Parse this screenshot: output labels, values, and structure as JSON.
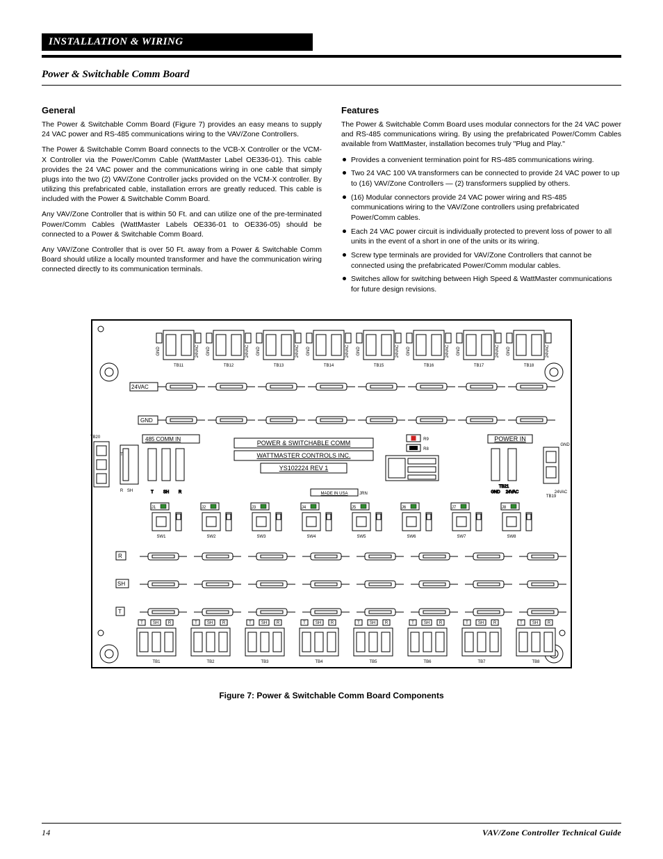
{
  "header": {
    "tab": "INSTALLATION & WIRING",
    "section": "Power & Switchable Comm Board"
  },
  "left": {
    "h": "General",
    "p1": "The Power & Switchable Comm Board (Figure 7) provides an easy means to supply 24 VAC power and RS-485 communications wiring to the VAV/Zone Controllers.",
    "p2": "The Power & Switchable Comm Board connects to the VCB-X Controller or the VCM-X Controller via the Power/Comm Cable (WattMaster Label OE336-01). This cable provides the 24 VAC power and the communications wiring in one cable that simply plugs into the two (2) VAV/Zone Controller jacks provided on the VCM-X controller. By utilizing this prefabricated cable, installation errors are greatly reduced. This cable is included with the Power & Switchable Comm Board.",
    "p3": "Any VAV/Zone Controller that is within 50 Ft. and can utilize one of the pre-terminated Power/Comm Cables (WattMaster Labels OE336-01 to OE336-05) should be connected to a Power & Switchable Comm Board.",
    "p4": "Any VAV/Zone Controller that is over 50 Ft. away from a Power & Switchable Comm Board should utilize a locally mounted transformer and have the communication wiring connected directly to its communication terminals."
  },
  "right": {
    "h": "Features",
    "p1": "The Power & Switchable Comm Board uses modular connectors for the 24 VAC power and RS-485 communications wiring. By using the prefabricated Power/Comm Cables available from WattMaster, installation becomes truly \"Plug and Play.\"",
    "items": [
      "Provides a convenient termination point for RS-485 communications wiring.",
      "Two 24 VAC 100 VA transformers can be connected to provide 24 VAC power to up to (16) VAV/Zone Controllers — (2) transformers supplied by others.",
      "(16) Modular connectors provide 24 VAC power wiring and RS-485 communications wiring to the VAV/Zone controllers using prefabricated Power/Comm cables.",
      "Each 24 VAC power circuit is individually protected to prevent loss of power to all units in the event of a short in one of the units or its wiring.",
      "Screw type terminals are provided for VAV/Zone Controllers that cannot be connected using the prefabricated Power/Comm modular cables.",
      "Switches allow for switching between High Speed & WattMaster communications for future design revisions."
    ]
  },
  "fig": {
    "caption": "Figure 7: Power & Switchable Comm Board Components",
    "center1": "POWER & SWITCHABLE COMM",
    "center2": "WATTMASTER CONTROLS INC.",
    "center3": "YS102224 REV 1",
    "made": "MADE IN USA",
    "init": "JRN",
    "powerin": "POWER IN",
    "rs485": "485 COMM IN",
    "lab_24v": "24VAC",
    "lab_gnd": "GND",
    "lab_R": "R",
    "lab_SH": "SH",
    "lab_T": "T",
    "top_row": [
      "TB11",
      "TB12",
      "TB13",
      "TB14",
      "TB15",
      "TB16",
      "TB17",
      "TB18"
    ],
    "bot_row": [
      "TB1",
      "TB2",
      "TB3",
      "TB4",
      "TB5",
      "TB6",
      "TB7",
      "TB8"
    ],
    "sw_row": [
      "SW1",
      "SW2",
      "SW3",
      "SW4",
      "SW5",
      "SW6",
      "SW7",
      "SW8"
    ],
    "j_row": [
      "J1",
      "J2",
      "J3",
      "J4",
      "J5",
      "J6",
      "J7",
      "J8"
    ],
    "tb20": "TB20",
    "tb21": "TB21",
    "tb19": "TB19",
    "r9": "R9",
    "r8": "R8",
    "row_gnd_24": [
      "GND",
      "24VAC",
      "GND",
      "24VAC",
      "GND",
      "24VAC",
      "GND",
      "24VAC",
      "GND",
      "24VAC",
      "GND",
      "24VAC",
      "GND",
      "24VAC",
      "GND",
      "24VAC"
    ],
    "sh_r": [
      "T",
      "SH",
      "R"
    ],
    "green": "#2e8b2e",
    "red": "#cc2020"
  },
  "footer": {
    "page": "14",
    "title": "VAV/Zone Controller Technical Guide"
  }
}
